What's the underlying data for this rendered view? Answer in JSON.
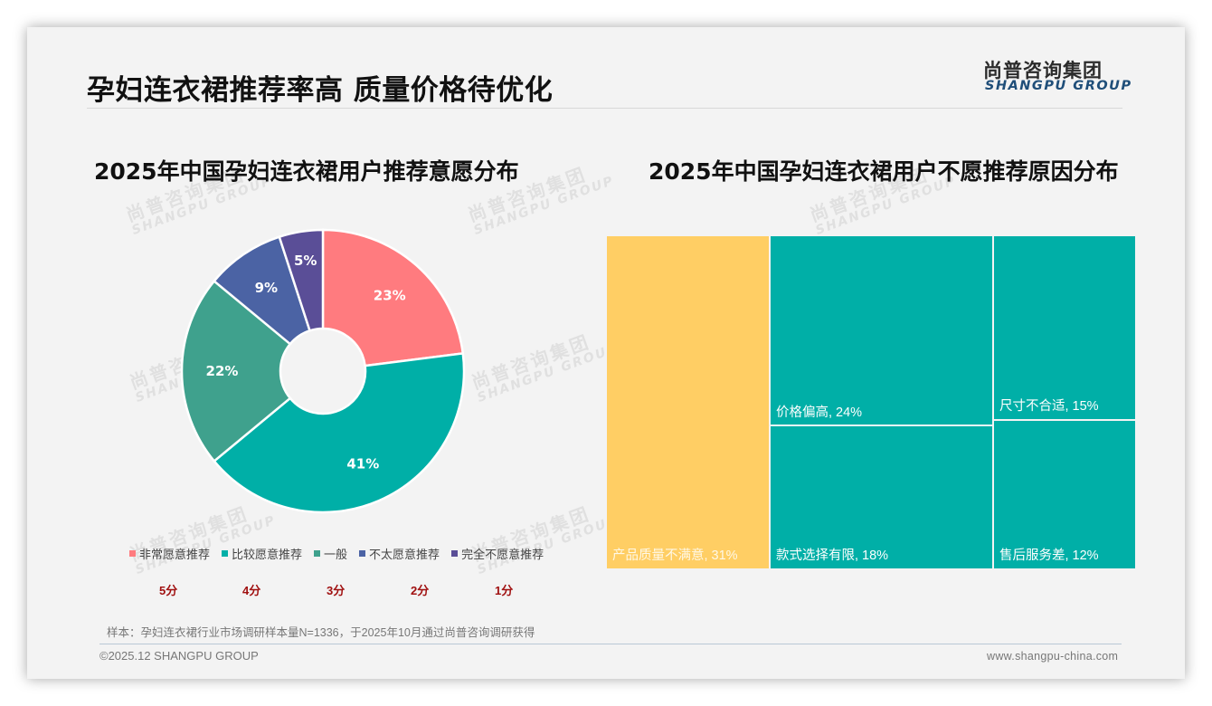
{
  "header": {
    "title": "孕妇连衣裙推荐率高 质量价格待优化",
    "logo_cn": "尚普咨询集团",
    "logo_en": "SHANGPU GROUP"
  },
  "watermark": {
    "cn": "尚普咨询集团",
    "en": "SHANGPU GROUP"
  },
  "colors": {
    "pink": "#FF7B7F",
    "teal": "#00AFA7",
    "green_teal": "#3FA18D",
    "blue": "#4B63A4",
    "purple": "#5A4E97",
    "yellow": "#FFCE64",
    "score_red": "#A01010",
    "logo_blue": "#1F4E79"
  },
  "chart_data": [
    {
      "type": "pie",
      "variant": "donut",
      "title": "2025年中国孕妇连衣裙用户推荐意愿分布",
      "categories": [
        "非常愿意推荐",
        "比较愿意推荐",
        "一般",
        "不太愿意推荐",
        "完全不愿意推荐"
      ],
      "values": [
        23,
        41,
        22,
        9,
        5
      ],
      "labels": [
        "23%",
        "41%",
        "22%",
        "9%",
        "5%"
      ],
      "scores": [
        "5分",
        "4分",
        "3分",
        "2分",
        "1分"
      ],
      "colors": [
        "#FF7B7F",
        "#00AFA7",
        "#3FA18D",
        "#4B63A4",
        "#5A4E97"
      ],
      "legend_position": "bottom",
      "start_angle": "top, clockwise"
    },
    {
      "type": "treemap",
      "title": "2025年中国孕妇连衣裙用户不愿推荐原因分布",
      "categories": [
        "产品质量不满意",
        "价格偏高",
        "款式选择有限",
        "尺寸不合适",
        "售后服务差"
      ],
      "values": [
        31,
        24,
        18,
        15,
        12
      ],
      "labels": [
        "产品质量不满意, 31%",
        "价格偏高, 24%",
        "款式选择有限, 18%",
        "尺寸不合适, 15%",
        "售后服务差, 12%"
      ],
      "colors": [
        "#FFCE64",
        "#00AFA7",
        "#00AFA7",
        "#00AFA7",
        "#00AFA7"
      ]
    }
  ],
  "left_chart": {
    "title": "2025年中国孕妇连衣裙用户推荐意愿分布",
    "slices": [
      {
        "label": "非常愿意推荐",
        "pct": "23%",
        "score": "5分"
      },
      {
        "label": "比较愿意推荐",
        "pct": "41%",
        "score": "4分"
      },
      {
        "label": "一般",
        "pct": "22%",
        "score": "3分"
      },
      {
        "label": "不太愿意推荐",
        "pct": "9%",
        "score": "2分"
      },
      {
        "label": "完全不愿意推荐",
        "pct": "5%",
        "score": "1分"
      }
    ]
  },
  "right_chart": {
    "title": "2025年中国孕妇连衣裙用户不愿推荐原因分布",
    "cells": [
      {
        "label": "产品质量不满意, 31%"
      },
      {
        "label": "价格偏高, 24%"
      },
      {
        "label": "款式选择有限, 18%"
      },
      {
        "label": "尺寸不合适, 15%"
      },
      {
        "label": "售后服务差, 12%"
      }
    ]
  },
  "footer": {
    "note": "样本：孕妇连衣裙行业市场调研样本量N=1336，于2025年10月通过尚普咨询调研获得",
    "copyright": "©2025.12 SHANGPU GROUP",
    "website": "www.shangpu-china.com"
  }
}
